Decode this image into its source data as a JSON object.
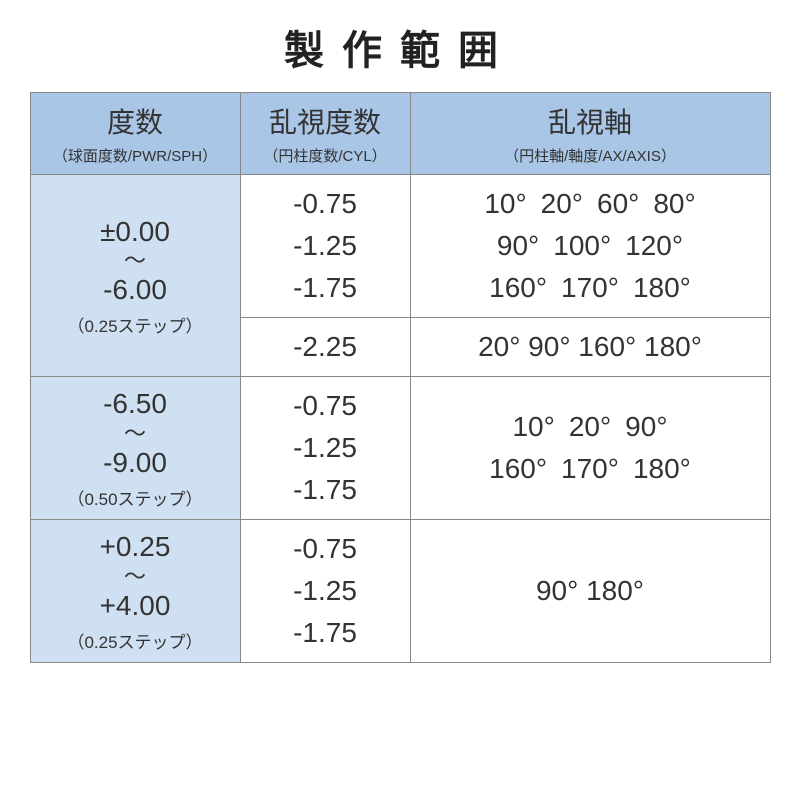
{
  "title": "製作範囲",
  "table": {
    "header_bg": "#aac6e6",
    "sph_bg": "#cfe0f2",
    "border_color": "#888888",
    "columns": [
      {
        "main": "度数",
        "sub": "（球面度数/PWR/SPH）"
      },
      {
        "main": "乱視度数",
        "sub": "（円柱度数/CYL）"
      },
      {
        "main": "乱視軸",
        "sub": "（円柱軸/軸度/AX/AXIS）"
      }
    ],
    "groups": [
      {
        "sph_from": "±0.00",
        "sph_to": "-6.00",
        "sph_step": "（0.25ステップ）",
        "rows": [
          {
            "cyl": "-0.75\n-1.25\n-1.75",
            "axis": "10° 20° 60° 80°\n90° 100° 120°\n160° 170° 180°"
          },
          {
            "cyl": "-2.25",
            "axis": "20° 90° 160° 180°"
          }
        ]
      },
      {
        "sph_from": "-6.50",
        "sph_to": "-9.00",
        "sph_step": "（0.50ステップ）",
        "rows": [
          {
            "cyl": "-0.75\n-1.25\n-1.75",
            "axis": "10° 20° 90°\n160° 170° 180°"
          }
        ]
      },
      {
        "sph_from": "+0.25",
        "sph_to": "+4.00",
        "sph_step": "（0.25ステップ）",
        "rows": [
          {
            "cyl": "-0.75\n-1.25\n-1.75",
            "axis": "90° 180°"
          }
        ]
      }
    ]
  }
}
